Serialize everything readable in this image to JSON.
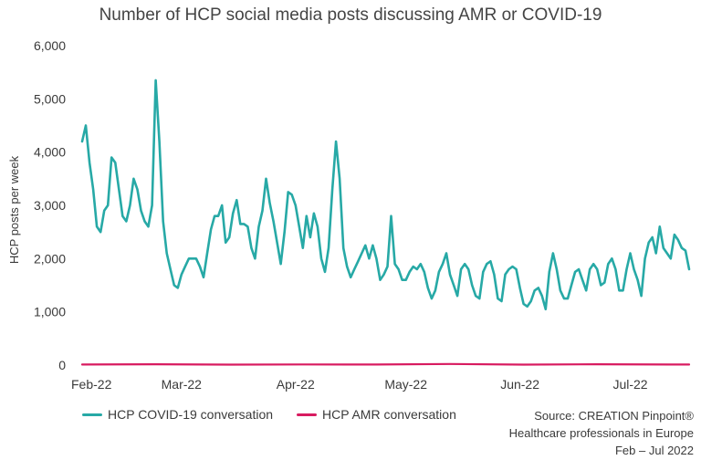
{
  "chart_data": {
    "type": "line",
    "title": "Number of HCP social media posts discussing AMR or COVID-19",
    "ylabel": "HCP posts per week",
    "xlabel": "",
    "ylim": [
      0,
      6000
    ],
    "yticks": [
      0,
      1000,
      2000,
      3000,
      4000,
      5000,
      6000
    ],
    "ytick_labels": [
      "0",
      "1,000",
      "2,000",
      "3,000",
      "4,000",
      "5,000",
      "6,000"
    ],
    "xlim": [
      0,
      165
    ],
    "xticks": [
      0,
      27,
      58,
      88,
      119,
      149
    ],
    "xtick_labels": [
      "Feb-22",
      "Mar-22",
      "Apr-22",
      "May-22",
      "Jun-22",
      "Jul-22"
    ],
    "grid": false,
    "legend_position": "bottom-left",
    "series": [
      {
        "name": "HCP COVID-19 conversation",
        "color": "#27a9a6",
        "x": [
          0,
          1,
          2,
          3,
          4,
          5,
          6,
          7,
          8,
          9,
          10,
          11,
          12,
          13,
          14,
          15,
          16,
          17,
          18,
          19,
          20,
          21,
          22,
          23,
          24,
          25,
          26,
          27,
          28,
          29,
          30,
          31,
          32,
          33,
          34,
          35,
          36,
          37,
          38,
          39,
          40,
          41,
          42,
          43,
          44,
          45,
          46,
          47,
          48,
          49,
          50,
          51,
          52,
          53,
          54,
          55,
          56,
          57,
          58,
          59,
          60,
          61,
          62,
          63,
          64,
          65,
          66,
          67,
          68,
          69,
          70,
          71,
          72,
          73,
          74,
          75,
          76,
          77,
          78,
          79,
          80,
          81,
          82,
          83,
          84,
          85,
          86,
          87,
          88,
          89,
          90,
          91,
          92,
          93,
          94,
          95,
          96,
          97,
          98,
          99,
          100,
          101,
          102,
          103,
          104,
          105,
          106,
          107,
          108,
          109,
          110,
          111,
          112,
          113,
          114,
          115,
          116,
          117,
          118,
          119,
          120,
          121,
          122,
          123,
          124,
          125,
          126,
          127,
          128,
          129,
          130,
          131,
          132,
          133,
          134,
          135,
          136,
          137,
          138,
          139,
          140,
          141,
          142,
          143,
          144,
          145,
          146,
          147,
          148,
          149,
          150,
          151,
          152,
          153,
          154,
          155,
          156,
          157,
          158,
          159,
          160,
          161,
          162,
          163,
          164,
          165
        ],
        "values": [
          4200,
          4500,
          3800,
          3300,
          2600,
          2500,
          2900,
          3000,
          3900,
          3800,
          3300,
          2800,
          2700,
          3000,
          3500,
          3300,
          2900,
          2700,
          2600,
          3000,
          5350,
          4200,
          2700,
          2100,
          1800,
          1500,
          1450,
          1700,
          1850,
          2000,
          2000,
          2000,
          1850,
          1650,
          2100,
          2550,
          2800,
          2800,
          3000,
          2300,
          2400,
          2850,
          3100,
          2650,
          2650,
          2600,
          2200,
          2000,
          2600,
          2900,
          3500,
          3050,
          2700,
          2300,
          1900,
          2500,
          3250,
          3200,
          3000,
          2600,
          2200,
          2800,
          2400,
          2850,
          2600,
          2000,
          1750,
          2200,
          3300,
          4200,
          3500,
          2200,
          1850,
          1650,
          1800,
          1950,
          2100,
          2250,
          2000,
          2250,
          2000,
          1600,
          1700,
          1850,
          2800,
          1900,
          1800,
          1600,
          1600,
          1750,
          1850,
          1800,
          1900,
          1750,
          1450,
          1250,
          1400,
          1750,
          1900,
          2100,
          1700,
          1500,
          1300,
          1800,
          1900,
          1800,
          1500,
          1300,
          1250,
          1750,
          1900,
          1950,
          1700,
          1250,
          1200,
          1700,
          1800,
          1850,
          1800,
          1450,
          1150,
          1100,
          1200,
          1400,
          1450,
          1300,
          1050,
          1750,
          2100,
          1800,
          1400,
          1250,
          1250,
          1500,
          1750,
          1800,
          1600,
          1400,
          1800,
          1900,
          1800,
          1500,
          1550,
          1900,
          2000,
          1800,
          1400,
          1400,
          1800,
          2100,
          1800,
          1600,
          1300,
          2000,
          2300,
          2400,
          2100,
          2600,
          2200,
          2100,
          2000,
          2450,
          2350,
          2200,
          2150,
          1800
        ]
      },
      {
        "name": "HCP AMR conversation",
        "color": "#d81b60",
        "x": [
          0,
          20,
          40,
          60,
          80,
          100,
          120,
          140,
          160,
          165
        ],
        "values": [
          10,
          15,
          8,
          12,
          10,
          20,
          8,
          15,
          10,
          10
        ]
      }
    ],
    "source_lines": [
      "Source: CREATION Pinpoint®",
      "Healthcare professionals in Europe",
      "Feb – Jul 2022"
    ]
  }
}
